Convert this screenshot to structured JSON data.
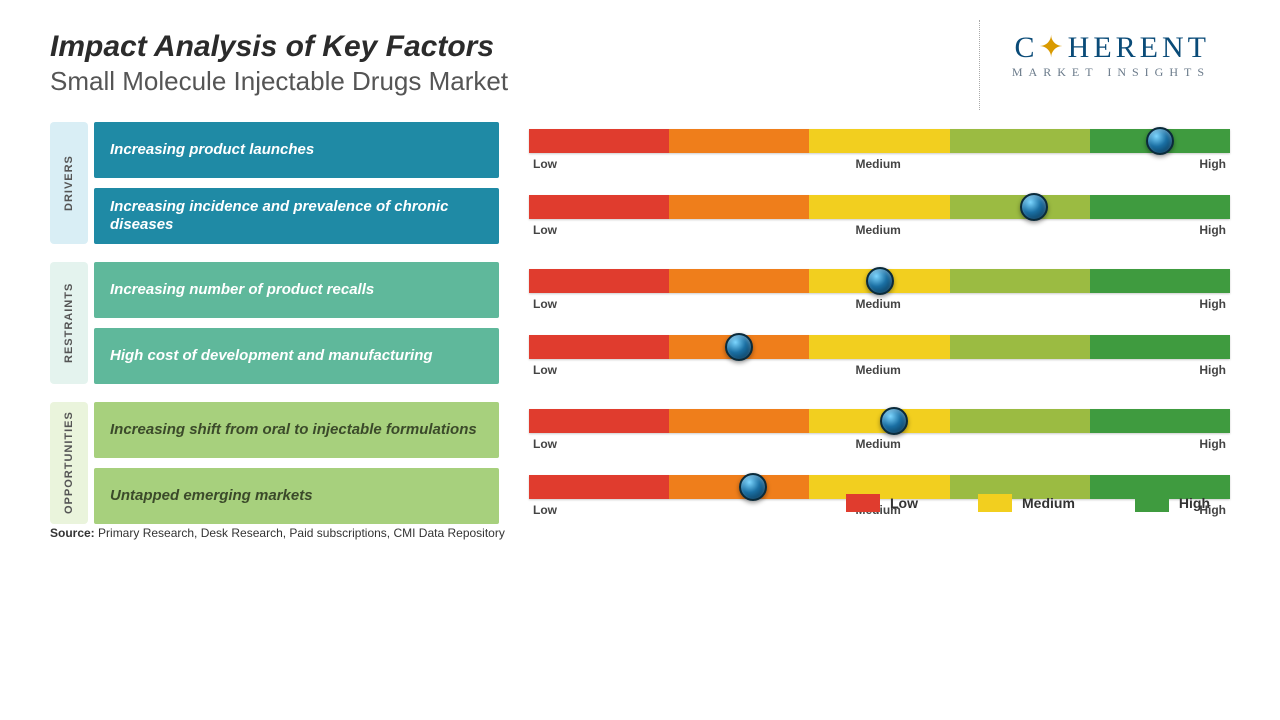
{
  "title": "Impact Analysis of Key Factors",
  "subtitle": "Small Molecule Injectable Drugs Market",
  "logo": {
    "line1_a": "C",
    "line1_b": "HERENT",
    "line2": "MARKET INSIGHTS"
  },
  "slider_labels": {
    "low": "Low",
    "medium": "Medium",
    "high": "High"
  },
  "gradient_colors": [
    "#e03c2e",
    "#ef7e1b",
    "#f2cf1f",
    "#9bbb42",
    "#3f9b3f"
  ],
  "marker_color": "#0a6aa3",
  "categories": [
    {
      "name": "DRIVERS",
      "tab_bg": "#d9eef5",
      "factor_bg": "#1f8aa5",
      "factor_text": "#ffffff",
      "factors": [
        {
          "label": "Increasing product launches",
          "value_pct": 90
        },
        {
          "label": "Increasing incidence and prevalence of chronic diseases",
          "value_pct": 72
        }
      ]
    },
    {
      "name": "RESTRAINTS",
      "tab_bg": "#e4f3ee",
      "factor_bg": "#5fb89b",
      "factor_text": "#ffffff",
      "factors": [
        {
          "label": "Increasing number of product recalls",
          "value_pct": 50
        },
        {
          "label": "High cost of development and manufacturing",
          "value_pct": 30
        }
      ]
    },
    {
      "name": "OPPORTUNITIES",
      "tab_bg": "#eaf4dc",
      "factor_bg": "#a7d07d",
      "factor_text": "#3b4a2a",
      "factors": [
        {
          "label": "Increasing shift from oral to injectable formulations",
          "value_pct": 52
        },
        {
          "label": "Untapped emerging markets",
          "value_pct": 32
        }
      ]
    }
  ],
  "legend": [
    {
      "label": "Low",
      "color": "#e03c2e"
    },
    {
      "label": "Medium",
      "color": "#f2cf1f"
    },
    {
      "label": "High",
      "color": "#3f9b3f"
    }
  ],
  "source_label": "Source:",
  "source_text": " Primary Research, Desk Research, Paid subscriptions, CMI Data Repository"
}
